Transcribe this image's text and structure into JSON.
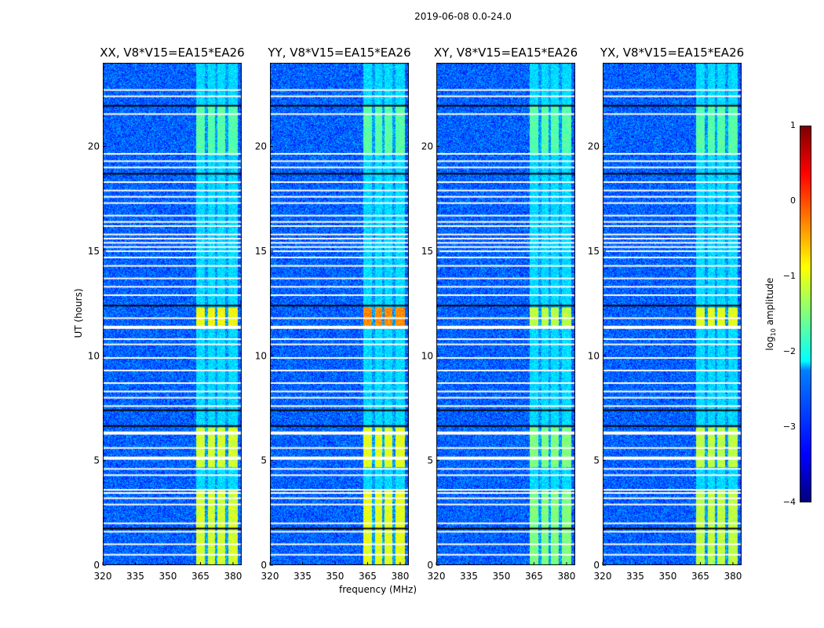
{
  "chart_data": {
    "type": "heatmap",
    "title": "2019-06-08 0.0-24.0",
    "xlabel": "frequency (MHz)",
    "ylabel": "UT (hours)",
    "xlim": [
      320,
      384
    ],
    "ylim": [
      0,
      24
    ],
    "xticks": [
      "320",
      "335",
      "350",
      "365",
      "380"
    ],
    "xtick_values": [
      320,
      335,
      350,
      365,
      380
    ],
    "yticks": [
      "0",
      "5",
      "10",
      "15",
      "20"
    ],
    "ytick_values": [
      0,
      5,
      10,
      15,
      20
    ],
    "panels": [
      {
        "title": "XX, V8*V15=EA15*EA26",
        "band_level": -1.1,
        "peak_level": -0.9
      },
      {
        "title": "YY, V8*V15=EA15*EA26",
        "band_level": -1.0,
        "peak_level": -0.3
      },
      {
        "title": "XY, V8*V15=EA15*EA26",
        "band_level": -1.5,
        "peak_level": -1.2
      },
      {
        "title": "YX, V8*V15=EA15*EA26",
        "band_level": -1.2,
        "peak_level": -1.0
      }
    ],
    "background_level": -2.9,
    "rfi_band_mhz": [
      363,
      382
    ],
    "bright_intervals_hours": [
      [
        0,
        3.6
      ],
      [
        4.7,
        6.6
      ],
      [
        11.4,
        12.3
      ],
      [
        19.6,
        22
      ]
    ],
    "flagged_hours": [
      0.5,
      1.0,
      1.6,
      2.0,
      2.9,
      3.2,
      3.45,
      3.6,
      4.3,
      4.6,
      5.15,
      5.6,
      6.35,
      7.6,
      8.0,
      8.3,
      8.7,
      9.3,
      9.9,
      10.55,
      10.8,
      11.4,
      11.8,
      12.9,
      13.3,
      13.7,
      14.3,
      14.7,
      15.0,
      15.2,
      15.4,
      15.6,
      15.8,
      16.2,
      16.4,
      16.7,
      17.3,
      17.6,
      17.9,
      18.3,
      19.0,
      19.3,
      19.65,
      21.55,
      22.4,
      22.7
    ],
    "colorbar": {
      "label": "log10 amplitude",
      "ticks": [
        "1",
        "0",
        "−1",
        "−2",
        "−3",
        "−4"
      ],
      "range": [
        -4,
        1
      ],
      "colormap": "jet"
    }
  }
}
